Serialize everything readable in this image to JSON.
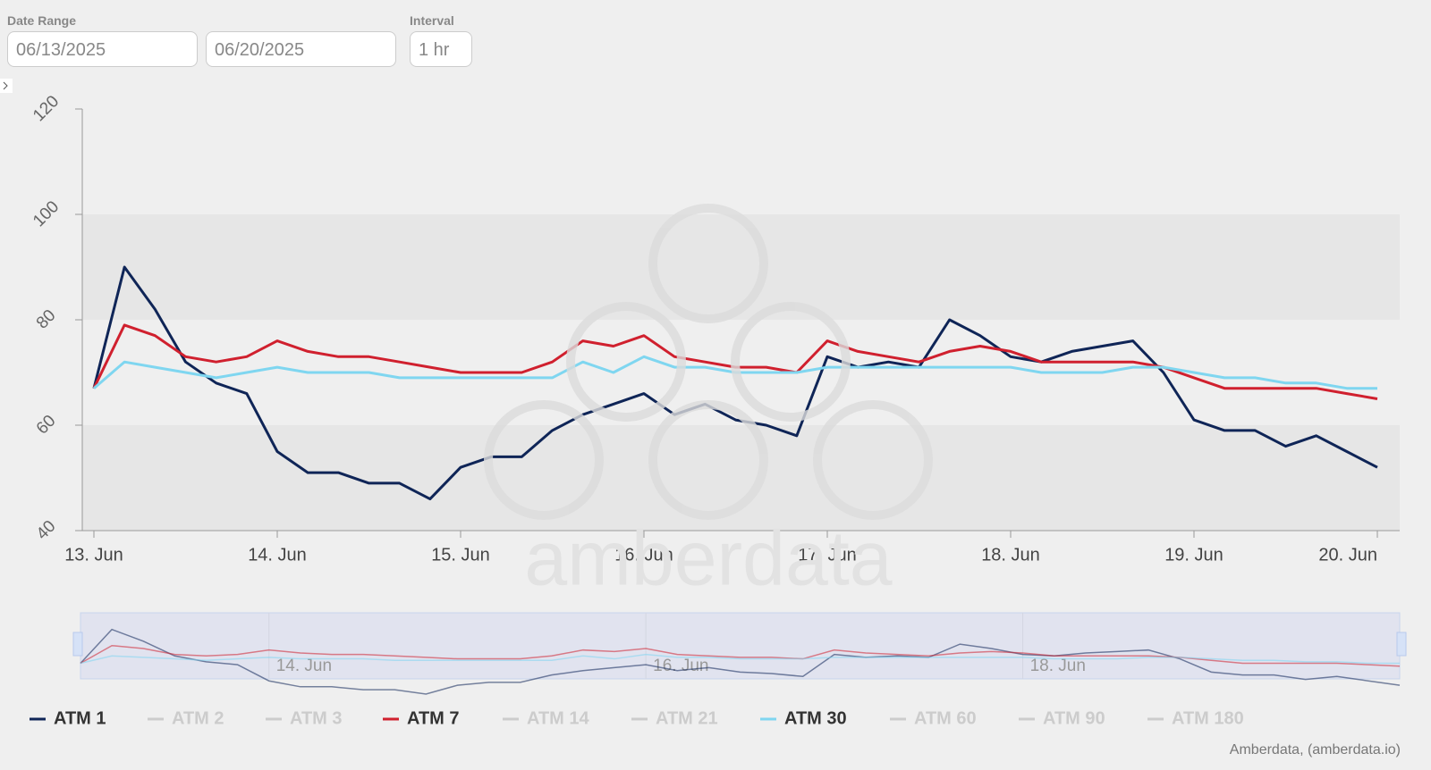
{
  "controls": {
    "date_range_label": "Date Range",
    "start_date": "06/13/2025",
    "end_date": "06/20/2025",
    "interval_label": "Interval",
    "interval": "1 hr"
  },
  "chart_data": {
    "type": "line",
    "categories": [
      "13. Jun",
      null,
      null,
      null,
      null,
      null,
      "14. Jun",
      null,
      null,
      null,
      null,
      null,
      "15. Jun",
      null,
      null,
      null,
      null,
      null,
      "16. Jun",
      null,
      null,
      null,
      null,
      null,
      "17. Jun",
      null,
      null,
      null,
      null,
      null,
      "18. Jun",
      null,
      null,
      null,
      null,
      null,
      "19. Jun",
      null,
      null,
      null,
      null,
      null,
      "20. Jun"
    ],
    "series": [
      {
        "name": "ATM 1",
        "color": "#0f2557",
        "visible": true,
        "values": [
          67,
          90,
          82,
          72,
          68,
          66,
          55,
          51,
          51,
          49,
          49,
          46,
          52,
          54,
          54,
          59,
          62,
          64,
          66,
          62,
          64,
          61,
          60,
          58,
          73,
          71,
          72,
          71,
          80,
          77,
          73,
          72,
          74,
          75,
          76,
          70,
          61,
          59,
          59,
          56,
          58,
          55,
          52
        ]
      },
      {
        "name": "ATM 2",
        "visible": false
      },
      {
        "name": "ATM 3",
        "visible": false
      },
      {
        "name": "ATM 7",
        "color": "#d0202e",
        "visible": true,
        "values": [
          67,
          79,
          77,
          73,
          72,
          73,
          76,
          74,
          73,
          73,
          72,
          71,
          70,
          70,
          70,
          72,
          76,
          75,
          77,
          73,
          72,
          71,
          71,
          70,
          76,
          74,
          73,
          72,
          74,
          75,
          74,
          72,
          72,
          72,
          72,
          71,
          69,
          67,
          67,
          67,
          67,
          66,
          65
        ]
      },
      {
        "name": "ATM 14",
        "visible": false
      },
      {
        "name": "ATM 21",
        "visible": false
      },
      {
        "name": "ATM 30",
        "color": "#7fd6f0",
        "visible": true,
        "values": [
          67,
          72,
          71,
          70,
          69,
          70,
          71,
          70,
          70,
          70,
          69,
          69,
          69,
          69,
          69,
          69,
          72,
          70,
          73,
          71,
          71,
          70,
          70,
          70,
          71,
          71,
          71,
          71,
          71,
          71,
          71,
          70,
          70,
          70,
          71,
          71,
          70,
          69,
          69,
          68,
          68,
          67,
          67
        ]
      },
      {
        "name": "ATM 60",
        "visible": false
      },
      {
        "name": "ATM 90",
        "visible": false
      },
      {
        "name": "ATM 180",
        "visible": false
      }
    ],
    "ylim": [
      40,
      120
    ],
    "yticks": [
      40,
      60,
      80,
      100,
      120
    ],
    "plot_bands": [
      [
        40,
        60
      ],
      [
        80,
        100
      ]
    ],
    "watermark": "amberdata",
    "credits": "Amberdata, (amberdata.io)"
  }
}
